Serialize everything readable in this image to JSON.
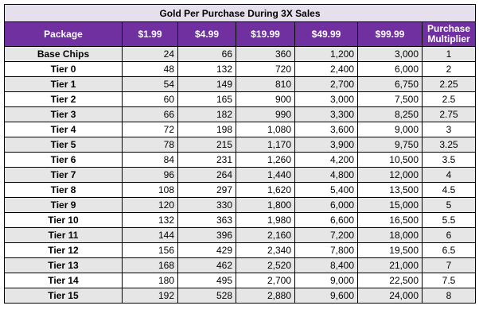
{
  "table": {
    "title": "Gold Per Purchase During 3X Sales",
    "columns": [
      "Package",
      "$1.99",
      "$4.99",
      "$19.99",
      "$49.99",
      "$99.99",
      "Purchase Multiplier"
    ],
    "rows": [
      [
        "Base Chips",
        "24",
        "66",
        "360",
        "1,200",
        "3,000",
        "1"
      ],
      [
        "Tier 0",
        "48",
        "132",
        "720",
        "2,400",
        "6,000",
        "2"
      ],
      [
        "Tier 1",
        "54",
        "149",
        "810",
        "2,700",
        "6,750",
        "2.25"
      ],
      [
        "Tier 2",
        "60",
        "165",
        "900",
        "3,000",
        "7,500",
        "2.5"
      ],
      [
        "Tier 3",
        "66",
        "182",
        "990",
        "3,300",
        "8,250",
        "2.75"
      ],
      [
        "Tier 4",
        "72",
        "198",
        "1,080",
        "3,600",
        "9,000",
        "3"
      ],
      [
        "Tier 5",
        "78",
        "215",
        "1,170",
        "3,900",
        "9,750",
        "3.25"
      ],
      [
        "Tier 6",
        "84",
        "231",
        "1,260",
        "4,200",
        "10,500",
        "3.5"
      ],
      [
        "Tier 7",
        "96",
        "264",
        "1,440",
        "4,800",
        "12,000",
        "4"
      ],
      [
        "Tier 8",
        "108",
        "297",
        "1,620",
        "5,400",
        "13,500",
        "4.5"
      ],
      [
        "Tier 9",
        "120",
        "330",
        "1,800",
        "6,000",
        "15,000",
        "5"
      ],
      [
        "Tier 10",
        "132",
        "363",
        "1,980",
        "6,600",
        "16,500",
        "5.5"
      ],
      [
        "Tier 11",
        "144",
        "396",
        "2,160",
        "7,200",
        "18,000",
        "6"
      ],
      [
        "Tier 12",
        "156",
        "429",
        "2,340",
        "7,800",
        "19,500",
        "6.5"
      ],
      [
        "Tier 13",
        "168",
        "462",
        "2,520",
        "8,400",
        "21,000",
        "7"
      ],
      [
        "Tier 14",
        "180",
        "495",
        "2,700",
        "9,000",
        "22,500",
        "7.5"
      ],
      [
        "Tier 15",
        "192",
        "528",
        "2,880",
        "9,600",
        "24,000",
        "8"
      ]
    ]
  },
  "colors": {
    "header_purple": "#7030a0",
    "title_lavender": "#e6e0ec",
    "alt_row_gray": "#e7e6e6",
    "border": "#000000"
  }
}
